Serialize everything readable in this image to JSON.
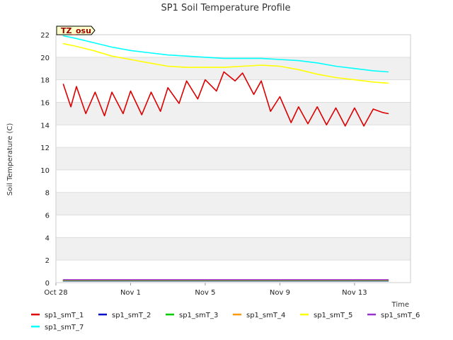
{
  "chart_data": {
    "type": "line",
    "title": "SP1 Soil Temperature Profile",
    "xlabel": "Time",
    "ylabel": "Soil Temperature (C)",
    "badge": "TZ_osu",
    "ylim": [
      0,
      22
    ],
    "xlim_days": [
      0,
      19
    ],
    "yticks": [
      0,
      2,
      4,
      6,
      8,
      10,
      12,
      14,
      16,
      18,
      20,
      22
    ],
    "xticks": [
      {
        "label": "Oct 28",
        "day": 0
      },
      {
        "label": "Nov 1",
        "day": 4
      },
      {
        "label": "Nov 5",
        "day": 8
      },
      {
        "label": "Nov 9",
        "day": 12
      },
      {
        "label": "Nov 13",
        "day": 16
      }
    ],
    "grid": true,
    "legend_position": "bottom",
    "series": [
      {
        "name": "sp1_smT_1",
        "color": "#dd0000",
        "x": [
          0.4,
          0.8,
          1.1,
          1.6,
          2.1,
          2.6,
          3.0,
          3.6,
          4.0,
          4.6,
          5.1,
          5.6,
          6.0,
          6.6,
          7.0,
          7.6,
          8.0,
          8.6,
          9.0,
          9.6,
          10.0,
          10.6,
          11.0,
          11.5,
          12.0,
          12.6,
          13.0,
          13.5,
          14.0,
          14.5,
          15.0,
          15.5,
          16.0,
          16.5,
          17.0,
          17.5,
          17.8
        ],
        "y": [
          17.6,
          15.6,
          17.4,
          15.0,
          16.9,
          14.8,
          16.9,
          15.0,
          17.0,
          14.9,
          16.9,
          15.2,
          17.3,
          15.9,
          17.9,
          16.3,
          18.0,
          17.0,
          18.7,
          17.9,
          18.6,
          16.7,
          17.9,
          15.2,
          16.5,
          14.2,
          15.6,
          14.1,
          15.6,
          14.0,
          15.5,
          13.9,
          15.5,
          13.9,
          15.4,
          15.1,
          15.0
        ]
      },
      {
        "name": "sp1_smT_2",
        "color": "#0000cc",
        "x": [
          0.4,
          17.8
        ],
        "y": [
          0.15,
          0.15
        ]
      },
      {
        "name": "sp1_smT_3",
        "color": "#00cc00",
        "x": [
          0.4,
          17.8
        ],
        "y": [
          0.18,
          0.18
        ]
      },
      {
        "name": "sp1_smT_4",
        "color": "#ff9900",
        "x": [
          0.4,
          17.8
        ],
        "y": [
          0.22,
          0.22
        ]
      },
      {
        "name": "sp1_smT_5",
        "color": "#ffff00",
        "x": [
          0.4,
          1.0,
          2.0,
          3.0,
          4.0,
          5.0,
          6.0,
          7.0,
          8.0,
          9.0,
          10.0,
          11.0,
          12.0,
          13.0,
          14.0,
          15.0,
          16.0,
          17.0,
          17.8
        ],
        "y": [
          21.2,
          21.0,
          20.6,
          20.1,
          19.8,
          19.5,
          19.2,
          19.1,
          19.1,
          19.1,
          19.2,
          19.3,
          19.2,
          18.9,
          18.5,
          18.2,
          18.0,
          17.8,
          17.7
        ]
      },
      {
        "name": "sp1_smT_6",
        "color": "#9933cc",
        "x": [
          0.4,
          17.8
        ],
        "y": [
          0.26,
          0.26
        ]
      },
      {
        "name": "sp1_smT_7",
        "color": "#00ffff",
        "x": [
          0.4,
          1.0,
          2.0,
          3.0,
          4.0,
          5.0,
          6.0,
          7.0,
          8.0,
          9.0,
          10.0,
          11.0,
          12.0,
          13.0,
          14.0,
          15.0,
          16.0,
          17.0,
          17.8
        ],
        "y": [
          21.9,
          21.7,
          21.3,
          20.9,
          20.6,
          20.4,
          20.2,
          20.1,
          20.0,
          19.9,
          19.9,
          19.9,
          19.8,
          19.7,
          19.5,
          19.2,
          19.0,
          18.8,
          18.7
        ]
      }
    ]
  }
}
